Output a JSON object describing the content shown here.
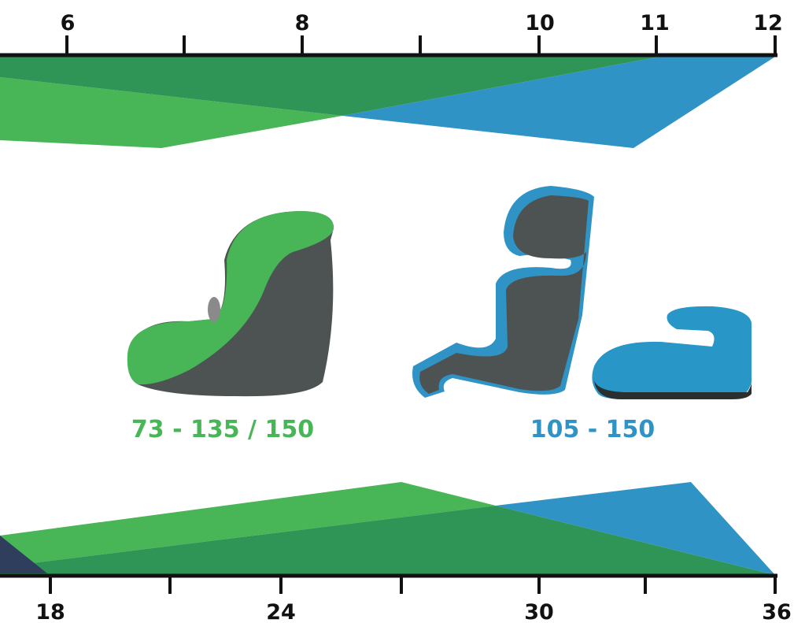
{
  "top_axis": {
    "labels": [
      "6",
      "8",
      "10",
      "11",
      "12"
    ]
  },
  "bottom_axis": {
    "labels": [
      "18",
      "24",
      "30",
      "36"
    ]
  },
  "seats": [
    {
      "label": "73 - 135 / 150"
    },
    {
      "label": "105 - 150"
    }
  ]
}
